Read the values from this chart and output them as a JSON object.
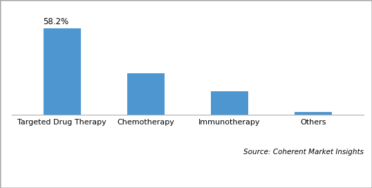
{
  "categories": [
    "Targeted Drug Therapy",
    "Chemotherapy",
    "Immunotherapy",
    "Others"
  ],
  "values": [
    58.2,
    28.0,
    16.0,
    2.0
  ],
  "bar_color": "#4e96d0",
  "bar_label": "58.2%",
  "bar_label_index": 0,
  "ylim": [
    0,
    70
  ],
  "background_color": "#ffffff",
  "source_text": "Source: Coherent Market Insights",
  "source_fontsize": 7.5,
  "label_fontsize": 8.5,
  "tick_fontsize": 8,
  "bar_width": 0.45,
  "border_color": "#aaaaaa",
  "border_linewidth": 1.0
}
